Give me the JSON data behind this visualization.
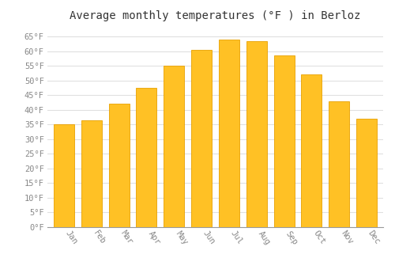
{
  "title": "Average monthly temperatures (°F ) in Berloz",
  "months": [
    "Jan",
    "Feb",
    "Mar",
    "Apr",
    "May",
    "Jun",
    "Jul",
    "Aug",
    "Sep",
    "Oct",
    "Nov",
    "Dec"
  ],
  "values": [
    35,
    36.5,
    42,
    47.5,
    55,
    60.5,
    64,
    63.5,
    58.5,
    52,
    43,
    37
  ],
  "bar_color": "#FFC125",
  "bar_edge_color": "#E8A000",
  "background_color": "#FFFFFF",
  "grid_color": "#E0E0E0",
  "ylim": [
    0,
    68
  ],
  "ytick_step": 5,
  "title_fontsize": 10,
  "tick_fontsize": 7.5,
  "tick_label_color": "#888888",
  "font_family": "monospace"
}
